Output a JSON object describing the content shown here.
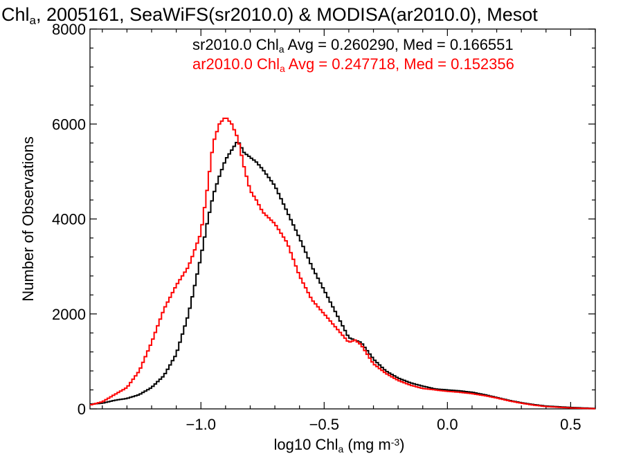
{
  "chart_data": {
    "type": "line",
    "step": true,
    "title": {
      "parts": [
        {
          "text": "Chl",
          "sub": false
        },
        {
          "text": "a",
          "sub": true
        },
        {
          "text": ", 2005161, SeaWiFS(sr2010.0) & MODISA(ar2010.0), Mesot",
          "sub": false
        }
      ]
    },
    "xlabel": {
      "parts": [
        {
          "text": "log10 Chl",
          "sub": false
        },
        {
          "text": "a",
          "sub": true
        },
        {
          "text": " (mg m",
          "sub": false
        },
        {
          "text": "-3",
          "sup": true
        },
        {
          "text": ")",
          "sub": false
        }
      ]
    },
    "ylabel": "Number of Observations",
    "xlim": [
      -1.45,
      0.6
    ],
    "ylim": [
      0,
      8000
    ],
    "xticks": [
      {
        "value": -1.0,
        "label": "−1.0"
      },
      {
        "value": -0.5,
        "label": "−0.5"
      },
      {
        "value": 0.0,
        "label": "0.0"
      },
      {
        "value": 0.5,
        "label": "0.5"
      }
    ],
    "yticks": [
      {
        "value": 0,
        "label": "0"
      },
      {
        "value": 2000,
        "label": "2000"
      },
      {
        "value": 4000,
        "label": "4000"
      },
      {
        "value": 6000,
        "label": "6000"
      },
      {
        "value": 8000,
        "label": "8000"
      }
    ],
    "grid": false,
    "legend_position": "top-right",
    "series": [
      {
        "name": "sr2010.0",
        "color": "#000000",
        "stats_label": {
          "parts": [
            {
              "text": "sr2010.0 Chl",
              "sub": false
            },
            {
              "text": "a",
              "sub": true
            },
            {
              "text": " Avg = 0.260290, Med = 0.166551",
              "sub": false
            }
          ]
        },
        "x": [
          -1.45,
          -1.4,
          -1.35,
          -1.3,
          -1.25,
          -1.2,
          -1.15,
          -1.1,
          -1.05,
          -1.0,
          -0.975,
          -0.95,
          -0.925,
          -0.9,
          -0.875,
          -0.85,
          -0.825,
          -0.8,
          -0.775,
          -0.75,
          -0.7,
          -0.65,
          -0.6,
          -0.55,
          -0.5,
          -0.45,
          -0.4,
          -0.375,
          -0.35,
          -0.3,
          -0.25,
          -0.2,
          -0.15,
          -0.1,
          -0.05,
          0.0,
          0.05,
          0.1,
          0.15,
          0.2,
          0.25,
          0.3,
          0.35,
          0.4,
          0.5,
          0.6
        ],
        "values": [
          100,
          120,
          180,
          220,
          300,
          450,
          700,
          1150,
          2000,
          3200,
          3900,
          4500,
          4900,
          5250,
          5450,
          5650,
          5400,
          5300,
          5200,
          5050,
          4700,
          4150,
          3600,
          3000,
          2500,
          2000,
          1500,
          1450,
          1400,
          1050,
          800,
          650,
          550,
          480,
          420,
          400,
          380,
          350,
          300,
          240,
          180,
          130,
          90,
          60,
          30,
          10
        ]
      },
      {
        "name": "ar2010.0",
        "color": "#ff0000",
        "stats_label": {
          "parts": [
            {
              "text": "ar2010.0 Chl",
              "sub": false
            },
            {
              "text": "a",
              "sub": true
            },
            {
              "text": " Avg = 0.247718, Med = 0.152356",
              "sub": false
            }
          ]
        },
        "x": [
          -1.45,
          -1.4,
          -1.35,
          -1.3,
          -1.25,
          -1.2,
          -1.15,
          -1.1,
          -1.05,
          -1.0,
          -0.975,
          -0.95,
          -0.925,
          -0.9,
          -0.875,
          -0.85,
          -0.825,
          -0.8,
          -0.775,
          -0.75,
          -0.7,
          -0.65,
          -0.6,
          -0.55,
          -0.5,
          -0.45,
          -0.4,
          -0.375,
          -0.35,
          -0.3,
          -0.25,
          -0.2,
          -0.15,
          -0.1,
          -0.05,
          0.0,
          0.05,
          0.1,
          0.15,
          0.2,
          0.25,
          0.3,
          0.35,
          0.4,
          0.5,
          0.6
        ],
        "values": [
          80,
          150,
          300,
          450,
          800,
          1400,
          2100,
          2600,
          3000,
          3700,
          4600,
          5600,
          6000,
          6150,
          6000,
          5700,
          5100,
          4600,
          4400,
          4150,
          3900,
          3500,
          2800,
          2300,
          2000,
          1700,
          1400,
          1450,
          1350,
          950,
          750,
          600,
          500,
          430,
          400,
          370,
          350,
          320,
          280,
          230,
          170,
          120,
          80,
          50,
          20,
          5
        ]
      }
    ]
  }
}
